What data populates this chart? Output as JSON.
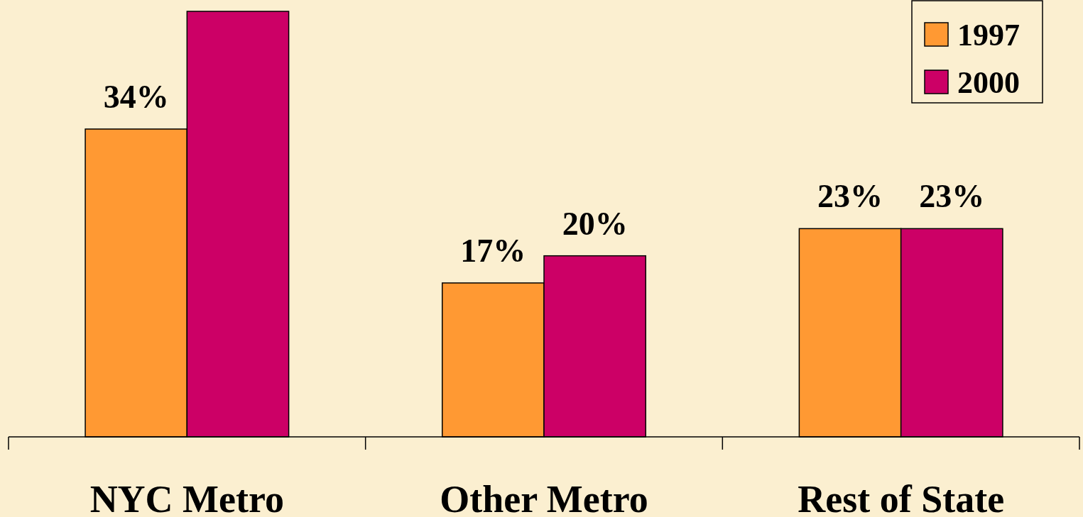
{
  "chart_data": {
    "type": "bar",
    "categories": [
      "NYC Metro",
      "Other Metro",
      "Rest of State"
    ],
    "series": [
      {
        "name": "1997",
        "color": "#ff9933",
        "values": [
          34,
          17,
          23
        ],
        "value_labels": [
          "34%",
          "17%",
          "23%"
        ]
      },
      {
        "name": "2000",
        "color": "#cc0066",
        "values": [
          47,
          20,
          23
        ],
        "value_labels": [
          null,
          "20%",
          "23%"
        ]
      }
    ],
    "legend": "top right",
    "grid": false
  }
}
